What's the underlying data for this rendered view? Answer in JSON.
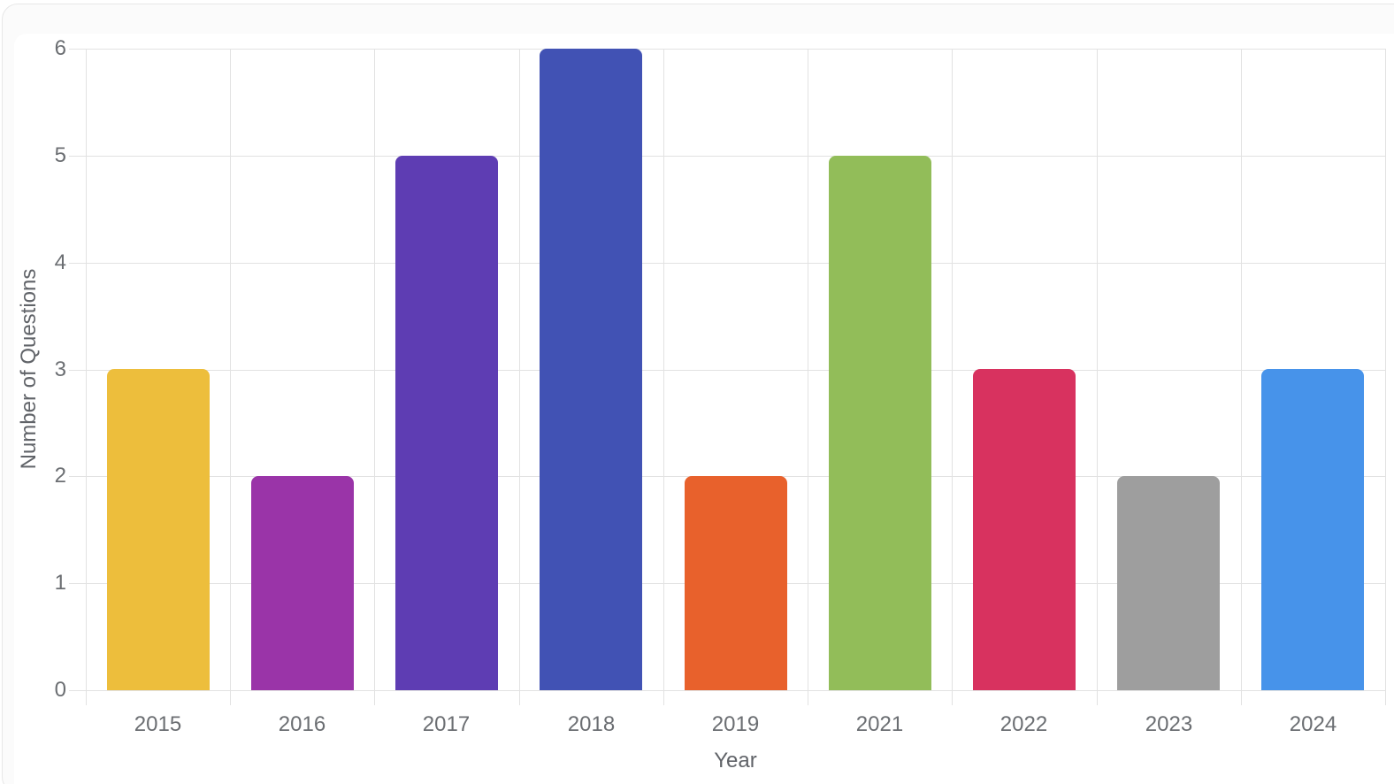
{
  "chart_data": {
    "type": "bar",
    "title": "",
    "xlabel": "Year",
    "ylabel": "Number of Questions",
    "categories": [
      "2015",
      "2016",
      "2017",
      "2018",
      "2019",
      "2021",
      "2022",
      "2023",
      "2024"
    ],
    "values": [
      3,
      2,
      5,
      6,
      2,
      5,
      3,
      2,
      3
    ],
    "bar_colors": [
      "#EDBE3C",
      "#9A34A8",
      "#5E3DB3",
      "#4152B4",
      "#E8612C",
      "#92BD59",
      "#D8325F",
      "#9E9E9E",
      "#4793EA"
    ],
    "y_ticks": [
      0,
      1,
      2,
      3,
      4,
      5,
      6
    ],
    "ylim": [
      0,
      6
    ],
    "grid": true,
    "legend_position": "none"
  },
  "theme": {
    "grid_color": "#e2e2e2",
    "tick_text_color": "#6b6e72",
    "axis_title_color": "#606368",
    "card_background": "#fbfbfb",
    "card_border_color": "#e7e7e7",
    "plot_background": "#ffffff"
  }
}
